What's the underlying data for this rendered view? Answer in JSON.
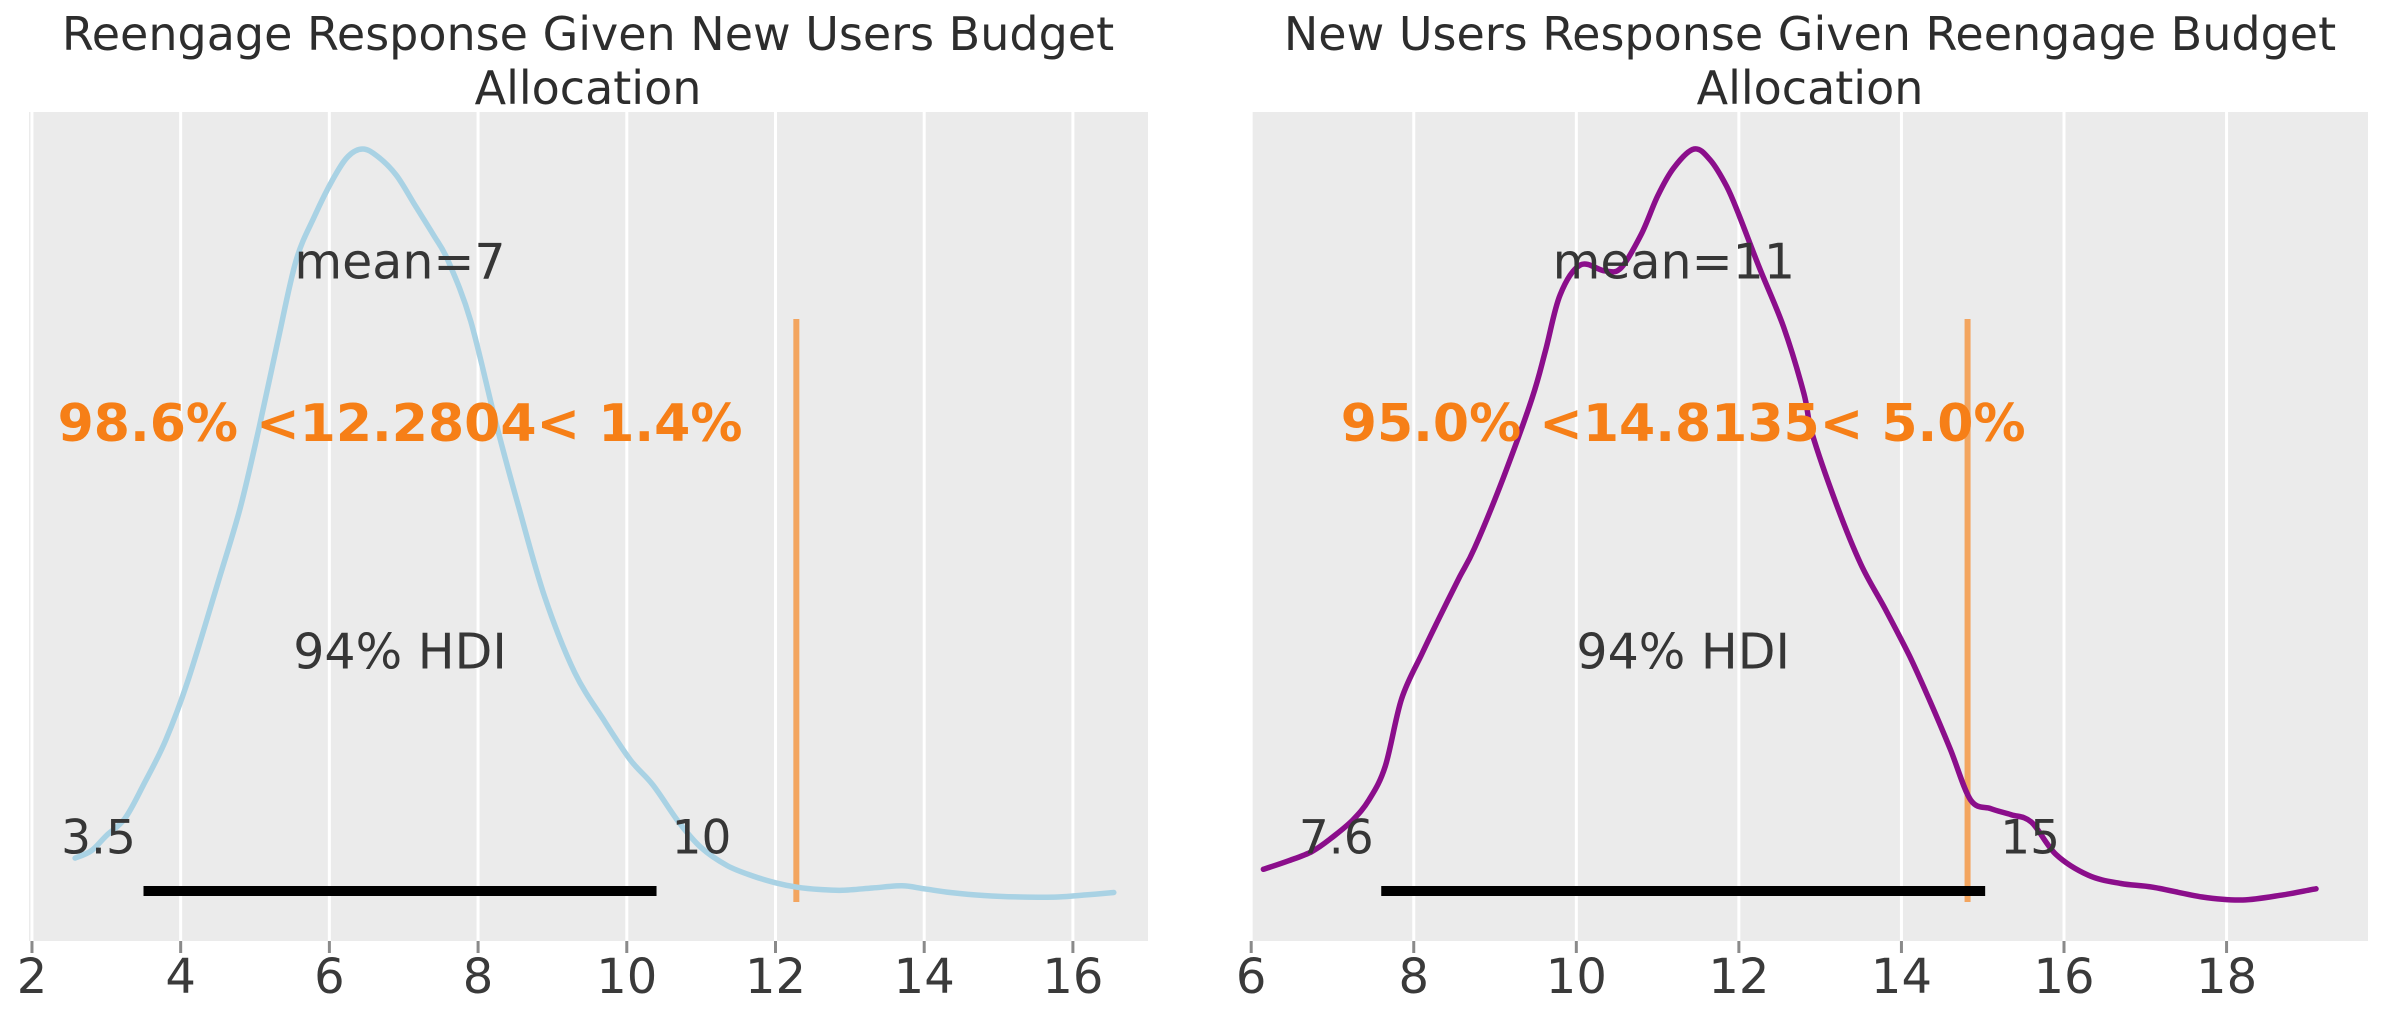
{
  "style": {
    "page_bg": "#ffffff",
    "panel_bg": "#ebebeb",
    "grid_color": "#ffffff",
    "tick_mark_color": "#8a8a8a",
    "text_color": "#363636",
    "title_color": "#2d2d2d",
    "hdi_bar_color": "#000000"
  },
  "chart_data": [
    {
      "type": "line",
      "subtype": "kde-posterior",
      "title": "Reengage Response Given New Users Budget Allocation",
      "title_line1": "Reengage Response Given New Users Budget",
      "title_line2": "Allocation",
      "curve_color": "#a9d2e4",
      "xlim": [
        1.96,
        17.01
      ],
      "x_ticks": [
        2,
        4,
        6,
        8,
        10,
        12,
        14,
        16
      ],
      "x_tick_labels": [
        "2",
        "4",
        "6",
        "8",
        "10",
        "12",
        "14",
        "16"
      ],
      "grid": "vertical-white",
      "legend": "none",
      "mean": {
        "label": "mean=7",
        "value": 7,
        "text_x": 6.95
      },
      "hdi": {
        "label": "94% HDI",
        "lower": 3.5,
        "upper": 10.4,
        "lower_label": "3.5",
        "upper_label": "10"
      },
      "ref": {
        "value": 12.2804,
        "label": "98.6% <12.2804< 1.4%",
        "line_color": "#f3a55f",
        "text_color": "#f67f17"
      },
      "curve": [
        [
          2.58,
          0.052
        ],
        [
          2.8,
          0.062
        ],
        [
          3.0,
          0.082
        ],
        [
          3.25,
          0.105
        ],
        [
          3.5,
          0.15
        ],
        [
          3.8,
          0.21
        ],
        [
          4.1,
          0.29
        ],
        [
          4.5,
          0.42
        ],
        [
          4.8,
          0.52
        ],
        [
          5.06,
          0.63
        ],
        [
          5.3,
          0.74
        ],
        [
          5.55,
          0.85
        ],
        [
          5.8,
          0.91
        ],
        [
          6.05,
          0.96
        ],
        [
          6.25,
          0.99
        ],
        [
          6.45,
          1.0
        ],
        [
          6.65,
          0.99
        ],
        [
          6.9,
          0.965
        ],
        [
          7.15,
          0.925
        ],
        [
          7.4,
          0.885
        ],
        [
          7.6,
          0.85
        ],
        [
          7.9,
          0.77
        ],
        [
          8.25,
          0.63
        ],
        [
          8.55,
          0.52
        ],
        [
          8.9,
          0.4
        ],
        [
          9.3,
          0.3
        ],
        [
          9.7,
          0.235
        ],
        [
          10.05,
          0.183
        ],
        [
          10.35,
          0.15
        ],
        [
          10.7,
          0.1
        ],
        [
          11.0,
          0.066
        ],
        [
          11.35,
          0.042
        ],
        [
          11.7,
          0.028
        ],
        [
          12.0,
          0.019
        ],
        [
          12.3,
          0.013
        ],
        [
          12.6,
          0.01
        ],
        [
          12.9,
          0.009
        ],
        [
          13.3,
          0.012
        ],
        [
          13.7,
          0.015
        ],
        [
          14.0,
          0.011
        ],
        [
          14.35,
          0.006
        ],
        [
          14.8,
          0.002
        ],
        [
          15.3,
          0.0
        ],
        [
          15.8,
          0.0
        ],
        [
          16.2,
          0.003
        ],
        [
          16.55,
          0.006
        ]
      ]
    },
    {
      "type": "line",
      "subtype": "kde-posterior",
      "title": "New Users Response Given Reengage Budget Allocation",
      "title_line1": "New Users Response Given Reengage Budget",
      "title_line2": "Allocation",
      "curve_color": "#8b0e8b",
      "xlim": [
        6.01,
        19.74
      ],
      "x_ticks": [
        6,
        8,
        10,
        12,
        14,
        16,
        18
      ],
      "x_tick_labels": [
        "6",
        "8",
        "10",
        "12",
        "14",
        "16",
        "18"
      ],
      "grid": "vertical-white",
      "legend": "none",
      "mean": {
        "label": "mean=11",
        "value": 11,
        "text_x": 11.2
      },
      "hdi": {
        "label": "94% HDI",
        "lower": 7.6,
        "upper": 15.03,
        "lower_label": "7.6",
        "upper_label": "15"
      },
      "ref": {
        "value": 14.8135,
        "label": "95.0% <14.8135< 5.0%",
        "line_color": "#f3a55f",
        "text_color": "#f67f17"
      },
      "curve": [
        [
          6.15,
          0.037
        ],
        [
          6.45,
          0.048
        ],
        [
          6.75,
          0.061
        ],
        [
          7.0,
          0.08
        ],
        [
          7.25,
          0.103
        ],
        [
          7.45,
          0.13
        ],
        [
          7.65,
          0.175
        ],
        [
          7.85,
          0.265
        ],
        [
          8.1,
          0.325
        ],
        [
          8.3,
          0.37
        ],
        [
          8.55,
          0.425
        ],
        [
          8.75,
          0.467
        ],
        [
          9.1,
          0.56
        ],
        [
          9.45,
          0.665
        ],
        [
          9.62,
          0.73
        ],
        [
          9.8,
          0.805
        ],
        [
          10.05,
          0.845
        ],
        [
          10.35,
          0.837
        ],
        [
          10.55,
          0.841
        ],
        [
          10.8,
          0.886
        ],
        [
          11.0,
          0.937
        ],
        [
          11.2,
          0.975
        ],
        [
          11.45,
          1.0
        ],
        [
          11.65,
          0.985
        ],
        [
          11.85,
          0.95
        ],
        [
          12.0,
          0.912
        ],
        [
          12.25,
          0.842
        ],
        [
          12.55,
          0.762
        ],
        [
          12.8,
          0.673
        ],
        [
          12.9,
          0.62
        ],
        [
          13.2,
          0.525
        ],
        [
          13.5,
          0.445
        ],
        [
          13.8,
          0.385
        ],
        [
          14.1,
          0.322
        ],
        [
          14.35,
          0.262
        ],
        [
          14.6,
          0.198
        ],
        [
          14.85,
          0.13
        ],
        [
          15.1,
          0.118
        ],
        [
          15.35,
          0.11
        ],
        [
          15.6,
          0.1
        ],
        [
          15.9,
          0.057
        ],
        [
          16.3,
          0.029
        ],
        [
          16.7,
          0.018
        ],
        [
          17.1,
          0.013
        ],
        [
          17.7,
          0.0
        ],
        [
          18.2,
          -0.004
        ],
        [
          18.7,
          0.003
        ],
        [
          19.0,
          0.009
        ],
        [
          19.1,
          0.011
        ]
      ]
    }
  ]
}
